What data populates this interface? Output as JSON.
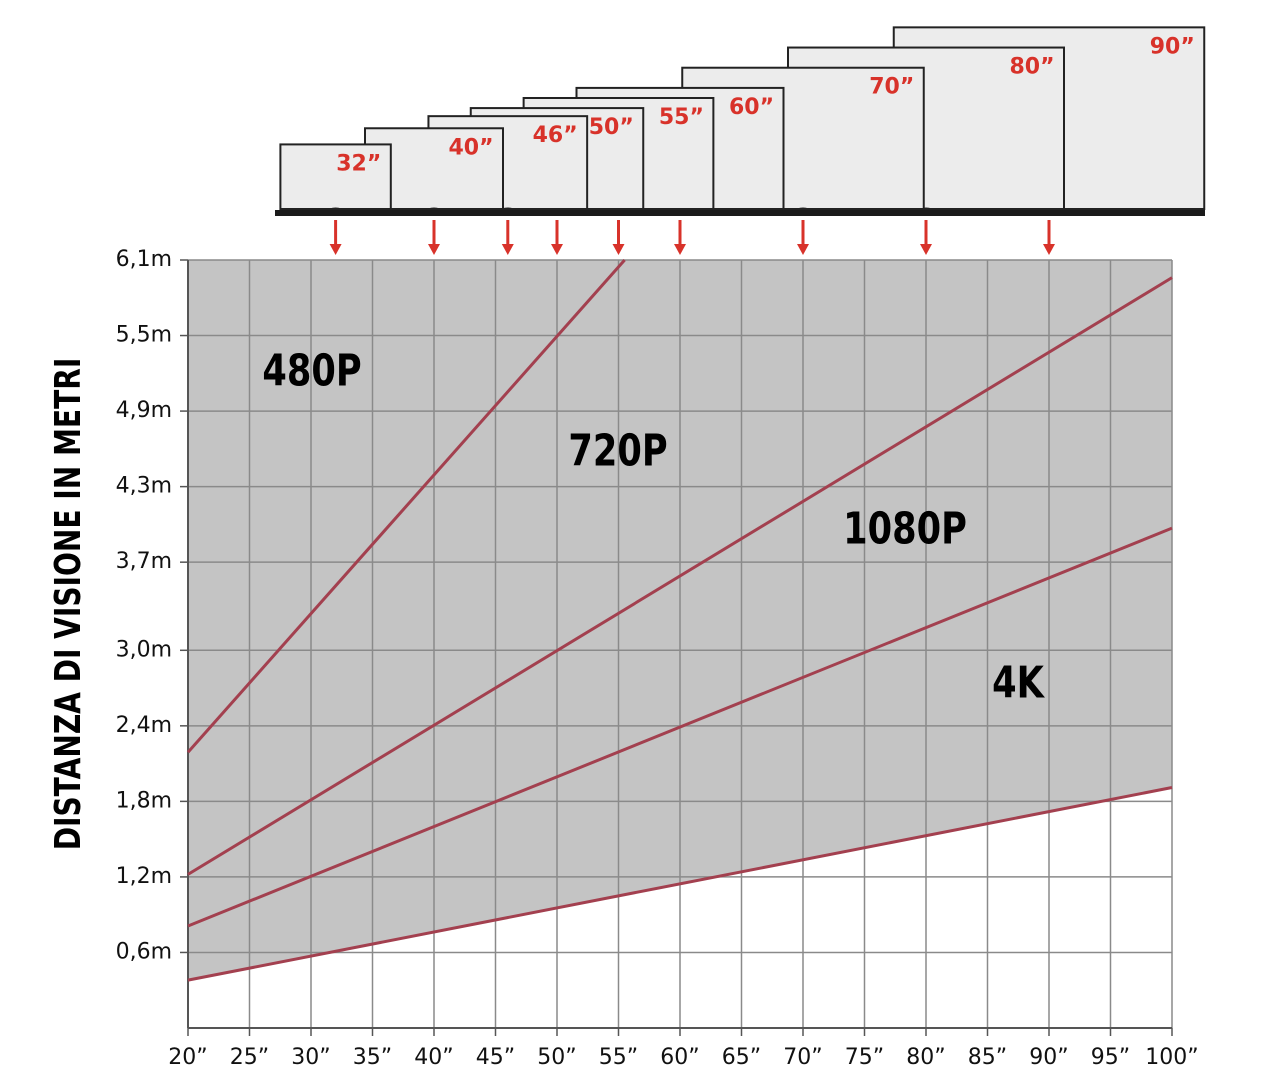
{
  "chart_data": {
    "type": "line",
    "y_axis_label": "DISTANZA DI VISIONE IN METRI",
    "xlim": [
      20,
      100
    ],
    "xticks": [
      {
        "value": 20,
        "label": "20”"
      },
      {
        "value": 25,
        "label": "25”"
      },
      {
        "value": 30,
        "label": "30”"
      },
      {
        "value": 35,
        "label": "35”"
      },
      {
        "value": 40,
        "label": "40”"
      },
      {
        "value": 45,
        "label": "45”"
      },
      {
        "value": 50,
        "label": "50”"
      },
      {
        "value": 55,
        "label": "55”"
      },
      {
        "value": 60,
        "label": "60”"
      },
      {
        "value": 65,
        "label": "65”"
      },
      {
        "value": 70,
        "label": "70”"
      },
      {
        "value": 75,
        "label": "75”"
      },
      {
        "value": 80,
        "label": "80”"
      },
      {
        "value": 85,
        "label": "85”"
      },
      {
        "value": 90,
        "label": "90”"
      },
      {
        "value": 95,
        "label": "95”"
      },
      {
        "value": 100,
        "label": "100”"
      }
    ],
    "ylim": [
      0,
      6.1
    ],
    "yticks": [
      {
        "value": 0.6,
        "label": "0,6m"
      },
      {
        "value": 1.2,
        "label": "1,2m"
      },
      {
        "value": 1.8,
        "label": "1,8m"
      },
      {
        "value": 2.4,
        "label": "2,4m"
      },
      {
        "value": 3.0,
        "label": "3,0m"
      },
      {
        "value": 3.7,
        "label": "3,7m"
      },
      {
        "value": 4.3,
        "label": "4,3m"
      },
      {
        "value": 4.9,
        "label": "4,9m"
      },
      {
        "value": 5.5,
        "label": "5,5m"
      },
      {
        "value": 6.1,
        "label": "6,1m"
      }
    ],
    "grid": true,
    "line_color": "#a3404f",
    "area_color": "#c4c4c4",
    "series": [
      {
        "x": [
          20,
          55.5
        ],
        "values": [
          2.19,
          6.1
        ]
      },
      {
        "x": [
          20,
          100
        ],
        "values": [
          1.22,
          5.96
        ]
      },
      {
        "x": [
          20,
          100
        ],
        "values": [
          0.81,
          3.97
        ]
      },
      {
        "x": [
          20,
          100
        ],
        "values": [
          0.38,
          1.91
        ]
      }
    ],
    "annotations": [
      "480P",
      "720P",
      "1080P",
      "4K"
    ],
    "tv_label_color": "#d8322a",
    "tvs": [
      {
        "value": 32,
        "label": "32”"
      },
      {
        "value": 40,
        "label": "40”"
      },
      {
        "value": 46,
        "label": "46”"
      },
      {
        "value": 50,
        "label": "50”"
      },
      {
        "value": 55,
        "label": "55”"
      },
      {
        "value": 60,
        "label": "60”"
      },
      {
        "value": 70,
        "label": "70”"
      },
      {
        "value": 80,
        "label": "80”"
      },
      {
        "value": 90,
        "label": "90”"
      }
    ]
  }
}
